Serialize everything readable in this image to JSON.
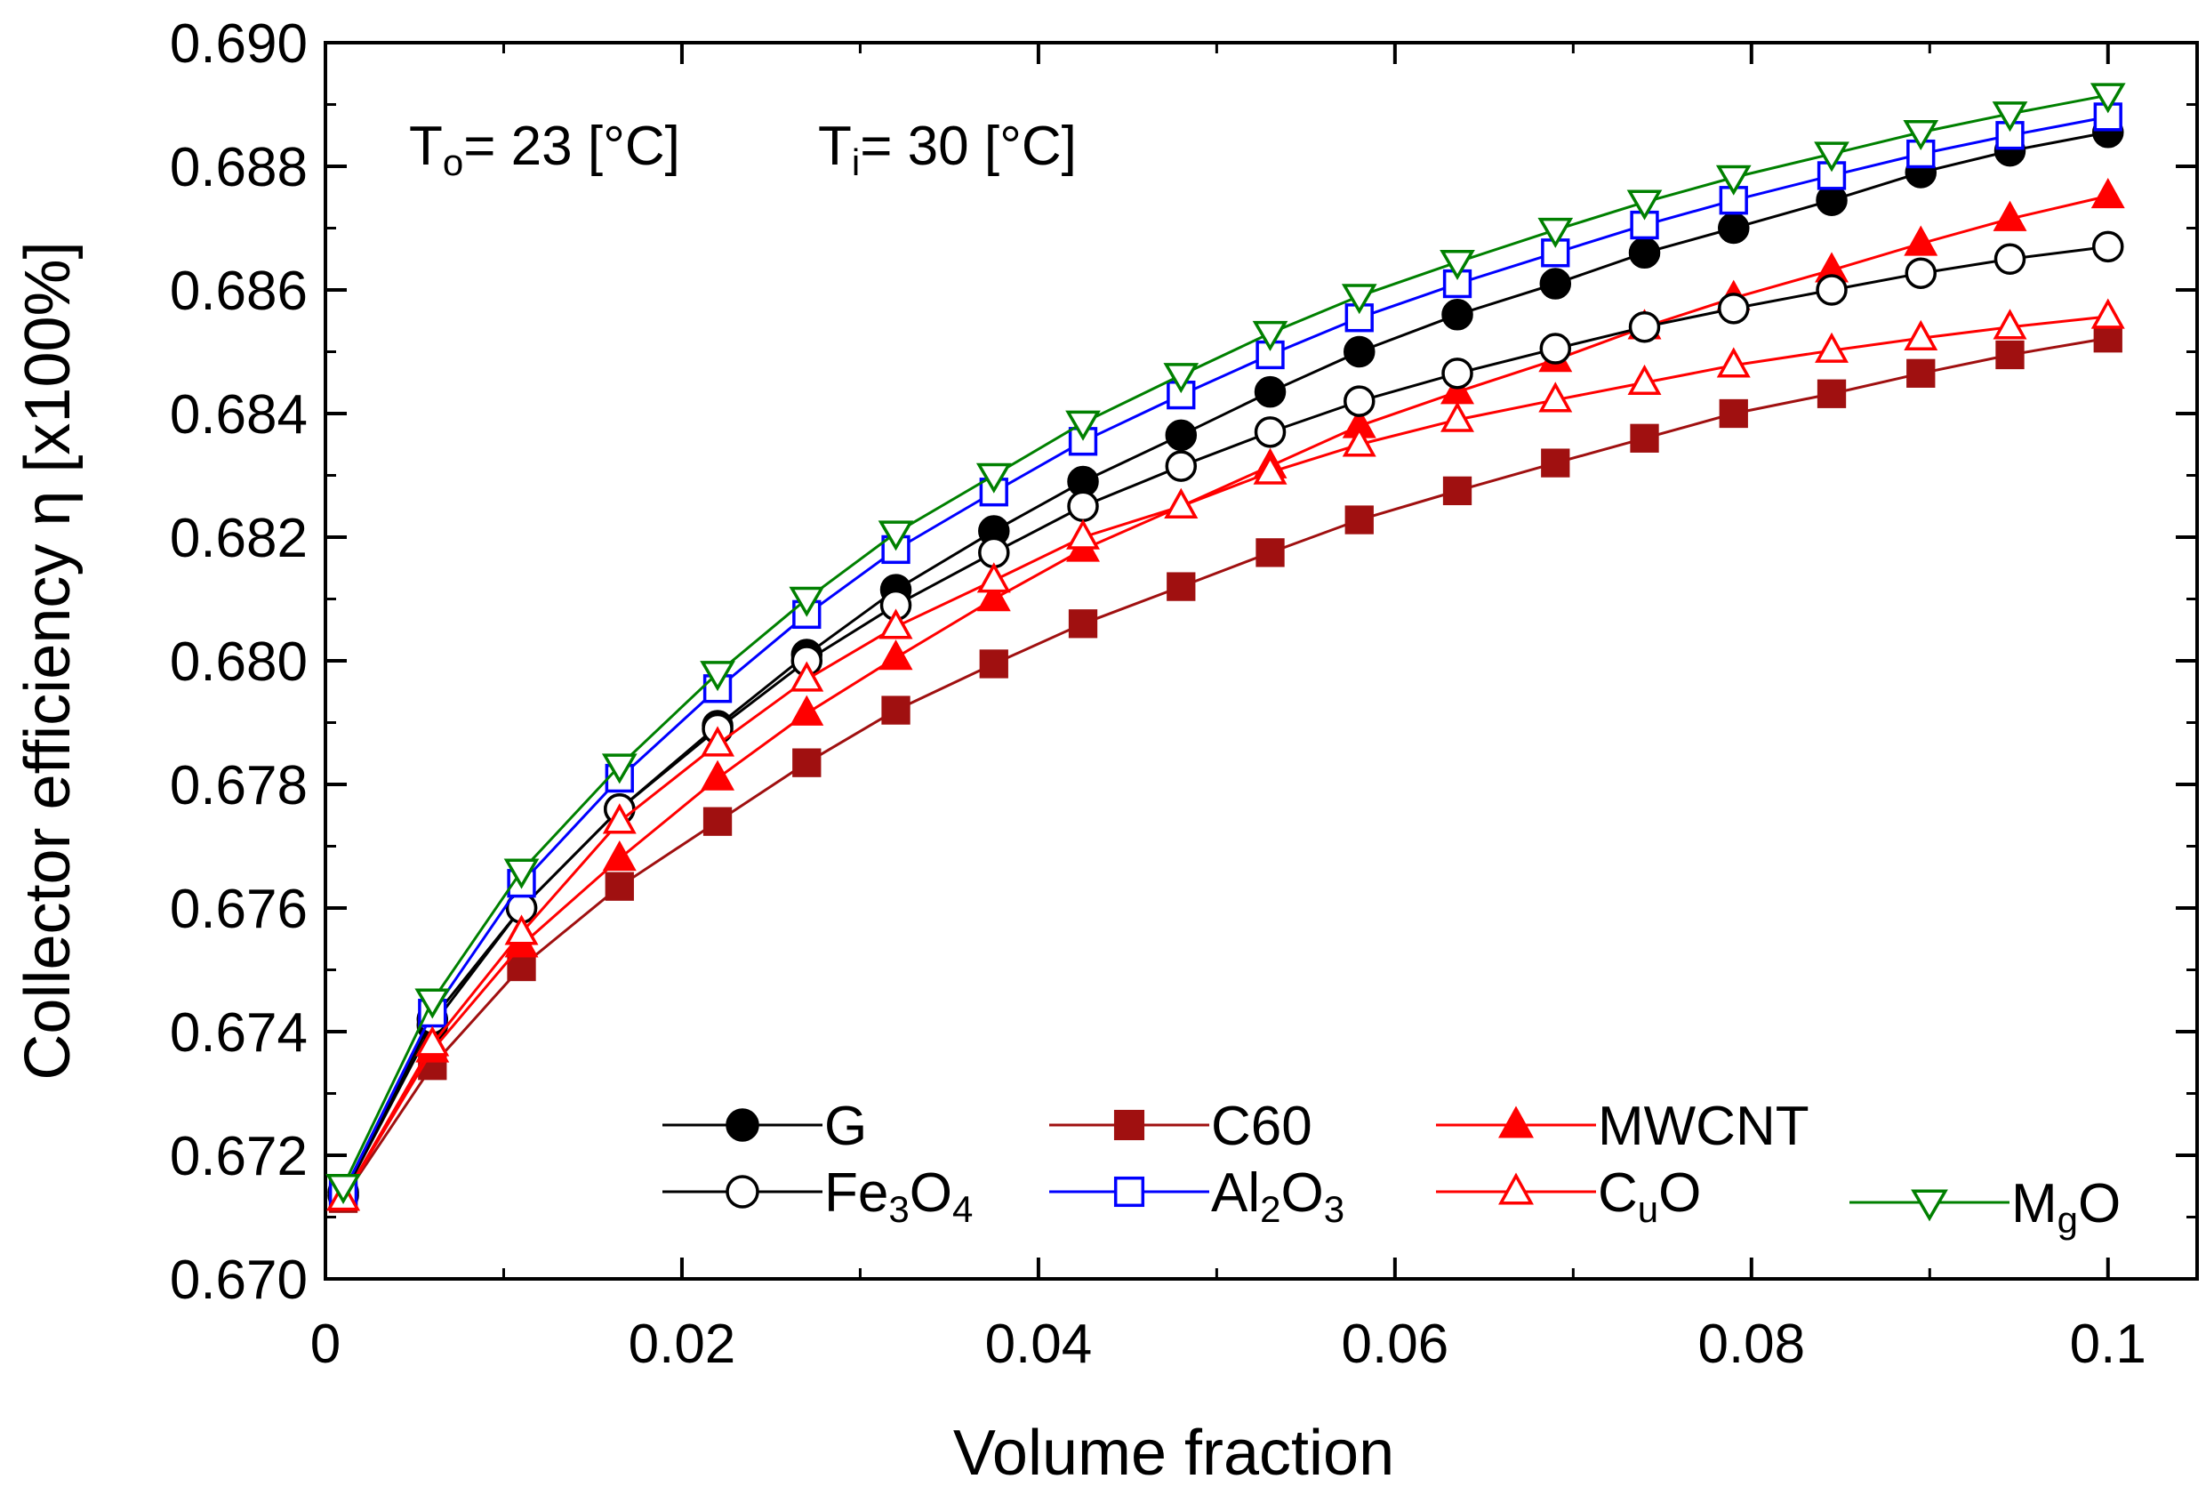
{
  "chart_data": {
    "type": "line",
    "title": "",
    "xlabel": "Volume fraction",
    "ylabel": "Collector efficiency η [x100%]",
    "xlim": [
      0,
      0.105
    ],
    "ylim": [
      0.67,
      0.69
    ],
    "x_ticks": [
      0,
      0.02,
      0.04,
      0.06,
      0.08,
      0.1
    ],
    "x_tick_labels": [
      "0",
      "0.02",
      "0.04",
      "0.06",
      "0.08",
      "0.1"
    ],
    "y_ticks": [
      0.67,
      0.672,
      0.674,
      0.676,
      0.678,
      0.68,
      0.682,
      0.684,
      0.686,
      0.688,
      0.69
    ],
    "y_tick_labels": [
      "0.670",
      "0.672",
      "0.674",
      "0.676",
      "0.678",
      "0.680",
      "0.682",
      "0.684",
      "0.686",
      "0.688",
      "0.690"
    ],
    "grid": false,
    "legend_position": "bottom-right",
    "annotations": {
      "to": {
        "main": "T",
        "sub": "o",
        "rest": "= 23 [°C]"
      },
      "ti": {
        "main": "T",
        "sub": "i",
        "rest": "= 30 [°C]"
      }
    },
    "x": [
      0.001,
      0.006,
      0.011,
      0.0165,
      0.022,
      0.027,
      0.032,
      0.0375,
      0.0425,
      0.048,
      0.053,
      0.058,
      0.0635,
      0.069,
      0.074,
      0.079,
      0.0845,
      0.0895,
      0.0945,
      0.1
    ],
    "series": [
      {
        "name": "G",
        "color": "#000000",
        "marker": "circle",
        "filled": true,
        "values": [
          0.67135,
          0.6741,
          0.676,
          0.6776,
          0.67895,
          0.6801,
          0.68115,
          0.6821,
          0.6829,
          0.68365,
          0.68435,
          0.685,
          0.6856,
          0.6861,
          0.6866,
          0.687,
          0.68745,
          0.6879,
          0.68825,
          0.68855
        ],
        "legend": {
          "main": "G",
          "sub": "",
          "tail": "",
          "sub2": "",
          "tail2": ""
        }
      },
      {
        "name": "C60",
        "color": "#a01010",
        "marker": "square",
        "filled": true,
        "values": [
          0.6713,
          0.67345,
          0.67505,
          0.67635,
          0.6774,
          0.67835,
          0.6792,
          0.67995,
          0.6806,
          0.6812,
          0.68175,
          0.68228,
          0.68275,
          0.6832,
          0.6836,
          0.684,
          0.68432,
          0.68465,
          0.68495,
          0.68522
        ],
        "legend": {
          "main": "C60",
          "sub": "",
          "tail": "",
          "sub2": "",
          "tail2": ""
        }
      },
      {
        "name": "MWCNT",
        "color": "#ff0000",
        "marker": "triangle-up",
        "filled": true,
        "values": [
          0.6713,
          0.6737,
          0.6754,
          0.6768,
          0.6781,
          0.67915,
          0.68005,
          0.681,
          0.6818,
          0.6825,
          0.68315,
          0.6838,
          0.68435,
          0.68487,
          0.6854,
          0.68587,
          0.68632,
          0.68675,
          0.68715,
          0.68752
        ],
        "legend": {
          "main": "MWCNT",
          "sub": "",
          "tail": "",
          "sub2": "",
          "tail2": ""
        }
      },
      {
        "name": "Fe3O4",
        "color": "#000000",
        "marker": "circle",
        "filled": false,
        "values": [
          0.6714,
          0.6742,
          0.676,
          0.6776,
          0.6789,
          0.68,
          0.6809,
          0.68175,
          0.6825,
          0.68315,
          0.6837,
          0.6842,
          0.68465,
          0.68505,
          0.6854,
          0.6857,
          0.686,
          0.68627,
          0.6865,
          0.6867
        ],
        "legend": {
          "main": "Fe",
          "sub": "3",
          "tail": "O",
          "sub2": "4",
          "tail2": ""
        }
      },
      {
        "name": "Al2O3",
        "color": "#0000ff",
        "marker": "square",
        "filled": false,
        "values": [
          0.6714,
          0.6743,
          0.6764,
          0.6781,
          0.67955,
          0.68075,
          0.6818,
          0.68273,
          0.68355,
          0.6843,
          0.68495,
          0.68555,
          0.6861,
          0.6866,
          0.68705,
          0.68745,
          0.68785,
          0.6882,
          0.6885,
          0.6888
        ],
        "legend": {
          "main": "Al",
          "sub": "2",
          "tail": "O",
          "sub2": "3",
          "tail2": ""
        }
      },
      {
        "name": "CuO",
        "color": "#ff0000",
        "marker": "triangle-up",
        "filled": false,
        "values": [
          0.6713,
          0.6738,
          0.6756,
          0.6774,
          0.67865,
          0.6797,
          0.68055,
          0.6813,
          0.682,
          0.6825,
          0.68305,
          0.6835,
          0.6839,
          0.68422,
          0.6845,
          0.68478,
          0.68502,
          0.68522,
          0.6854,
          0.68557
        ],
        "legend": {
          "main": "C",
          "sub": "u",
          "tail": "O",
          "sub2": "",
          "tail2": ""
        }
      },
      {
        "name": "MgO",
        "color": "#008000",
        "marker": "triangle-down",
        "filled": false,
        "values": [
          0.6715,
          0.6745,
          0.6766,
          0.6783,
          0.6798,
          0.681,
          0.68207,
          0.683,
          0.68385,
          0.68462,
          0.6853,
          0.6859,
          0.68645,
          0.68697,
          0.68742,
          0.68782,
          0.6882,
          0.68855,
          0.68885,
          0.68915
        ],
        "legend": {
          "main": "M",
          "sub": "g",
          "tail": "O",
          "sub2": "",
          "tail2": ""
        }
      }
    ]
  }
}
